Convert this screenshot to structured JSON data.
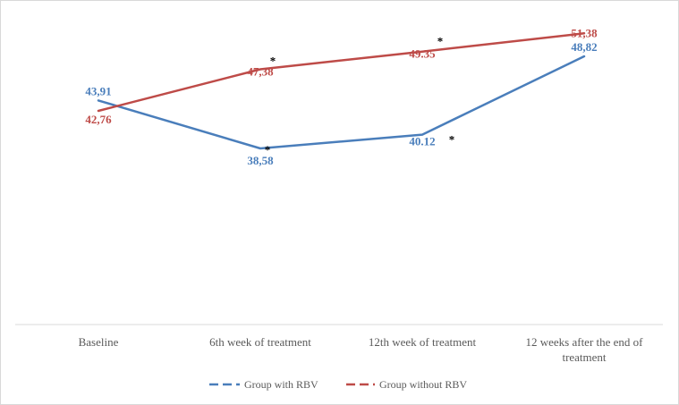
{
  "chart_data": {
    "type": "line",
    "categories": [
      "Baseline",
      "6th week of treatment",
      "12th week of treatment",
      "12 weeks after the end of treatment"
    ],
    "series": [
      {
        "name": "Group with RBV",
        "color": "#4a7ebb",
        "values": [
          43.91,
          38.58,
          40.12,
          48.82
        ],
        "labels": [
          "43,91",
          "38,58",
          "40.12",
          "48,82"
        ],
        "significant": [
          false,
          true,
          true,
          false
        ]
      },
      {
        "name": "Group without RBV",
        "color": "#be4b48",
        "values": [
          42.76,
          47.38,
          49.35,
          51.38
        ],
        "labels": [
          "42,76",
          "47,38",
          "49.35",
          "51,38"
        ],
        "significant": [
          false,
          true,
          true,
          false
        ]
      }
    ],
    "annotation_symbol": "*",
    "ylim": [
      19,
      53
    ],
    "grid": false,
    "legend_position": "bottom",
    "title": "",
    "xlabel": "",
    "ylabel": ""
  }
}
